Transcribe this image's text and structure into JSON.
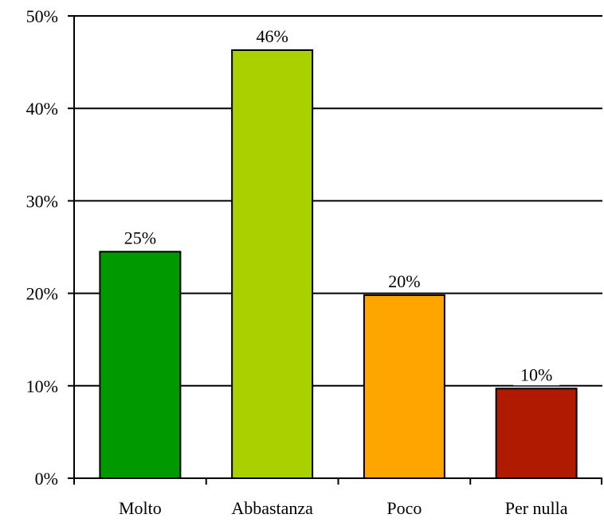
{
  "chart_data": {
    "type": "bar",
    "title": "",
    "xlabel": "",
    "ylabel": "",
    "categories": [
      "Molto",
      "Abbastanza",
      "Poco",
      "Per nulla"
    ],
    "values": [
      24.5,
      46.3,
      19.8,
      9.7
    ],
    "data_labels": [
      "25%",
      "46%",
      "20%",
      "10%"
    ],
    "colors": [
      "#009900",
      "#aad000",
      "#ffa500",
      "#b01a00"
    ],
    "ylim": [
      0,
      50
    ],
    "y_ticks": [
      {
        "value": 0,
        "label": "0%"
      },
      {
        "value": 10,
        "label": "10%"
      },
      {
        "value": 20,
        "label": "20%"
      },
      {
        "value": 30,
        "label": "30%"
      },
      {
        "value": 40,
        "label": "40%"
      },
      {
        "value": 50,
        "label": "50%"
      }
    ],
    "grid": true,
    "legend": "none"
  }
}
